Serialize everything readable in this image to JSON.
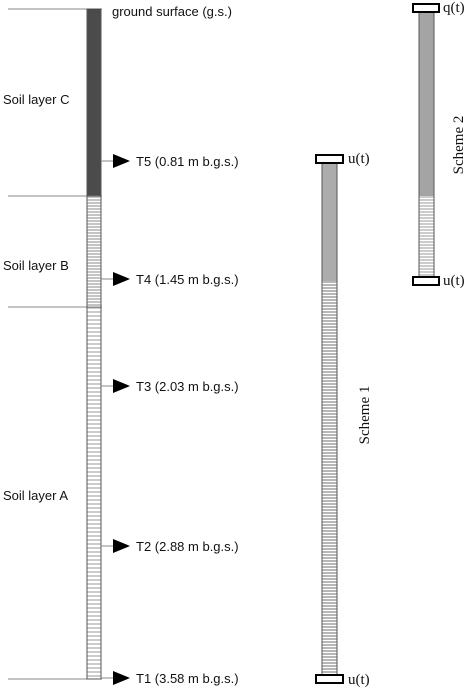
{
  "ground_label": "ground surface (g.s.)",
  "layers": [
    {
      "label": "Soil layer C"
    },
    {
      "label": "Soil layer B"
    },
    {
      "label": "Soil layer A"
    }
  ],
  "sensors": [
    {
      "label": "T5 (0.81 m b.g.s.)"
    },
    {
      "label": "T4 (1.45 m b.g.s.)"
    },
    {
      "label": "T3 (2.03 m b.g.s.)"
    },
    {
      "label": "T2 (2.88 m b.g.s.)"
    },
    {
      "label": "T1 (3.58 m b.g.s.)"
    }
  ],
  "scheme1": {
    "title": "Scheme 1",
    "top_bc": "u(t)",
    "bottom_bc": "u(t)"
  },
  "scheme2": {
    "title": "Scheme 2",
    "top_bc": "q(t)",
    "bottom_bc": "u(t)"
  }
}
